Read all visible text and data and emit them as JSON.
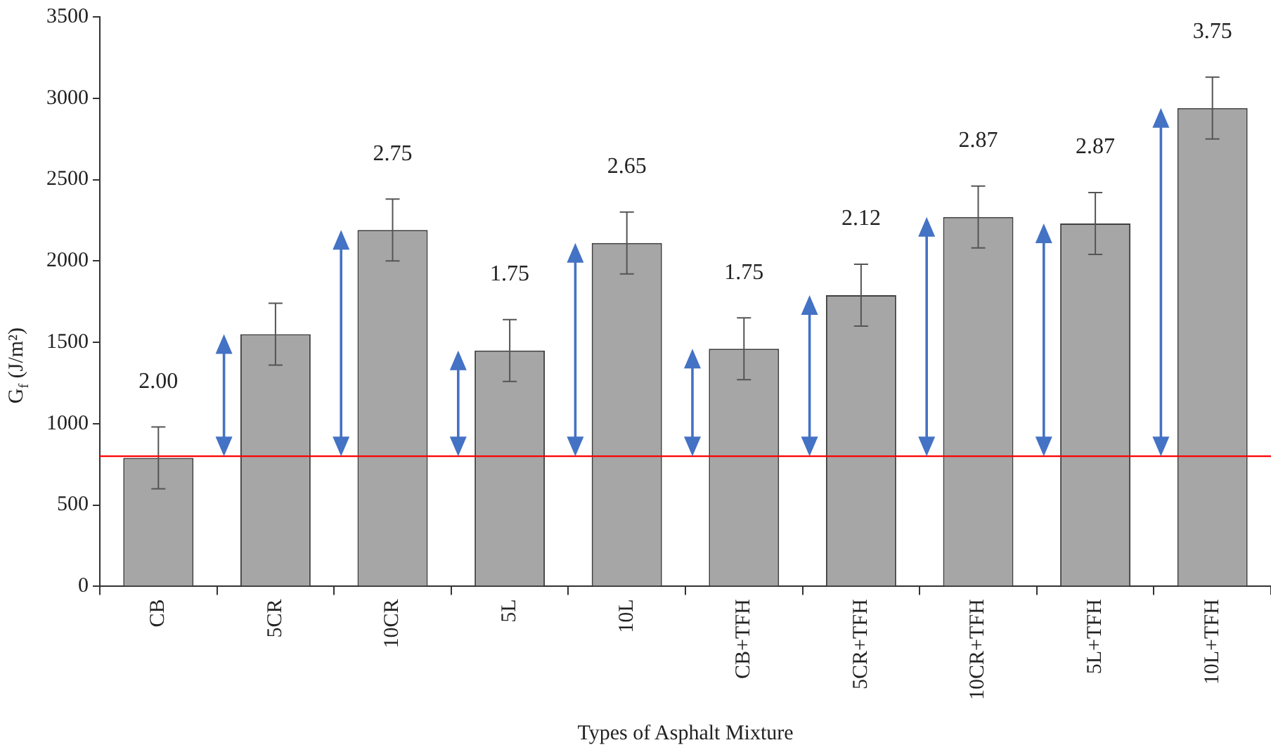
{
  "chart_data": {
    "type": "bar",
    "xlabel": "Types of Asphalt Mixture",
    "ylabel": "G$_{f}$ (J/m²)",
    "categories": [
      "CB",
      "5CR",
      "10CR",
      "5L",
      "10L",
      "CB+TFH",
      "5CR+TFH",
      "10CR+TFH",
      "5L+TFH",
      "10L+TFH"
    ],
    "values": [
      790,
      1550,
      2190,
      1450,
      2110,
      1460,
      1790,
      2270,
      2230,
      2940
    ],
    "errors": [
      190,
      190,
      190,
      190,
      190,
      190,
      190,
      190,
      190,
      190
    ],
    "color": "#a6a6a6",
    "ylim": [
      0,
      3500
    ],
    "yticks": [
      0,
      500,
      1000,
      1500,
      2000,
      2500,
      3000,
      3500
    ],
    "ref_lines": [
      {
        "axis": "y",
        "value": 800,
        "color": "#ff0000"
      }
    ],
    "annotations": [
      {
        "text": "2.00",
        "x": "CB",
        "y": 790
      },
      {
        "text": "2.75",
        "x": "10CR",
        "y": 2190
      },
      {
        "text": "1.75",
        "x": "5L",
        "y": 1450
      },
      {
        "text": "2.65",
        "x": "10L",
        "y": 2110
      },
      {
        "text": "1.75",
        "x": "CB+TFH",
        "y": 1460
      },
      {
        "text": "2.12",
        "x": "5CR+TFH",
        "y": 1790
      },
      {
        "text": "2.87",
        "x": "10CR+TFH",
        "y": 2270
      },
      {
        "text": "2.87",
        "x": "5L+TFH",
        "y": 2230
      },
      {
        "text": "3.75",
        "x": "10L+TFH",
        "y": 2940
      }
    ],
    "grid": false,
    "legend": false
  }
}
